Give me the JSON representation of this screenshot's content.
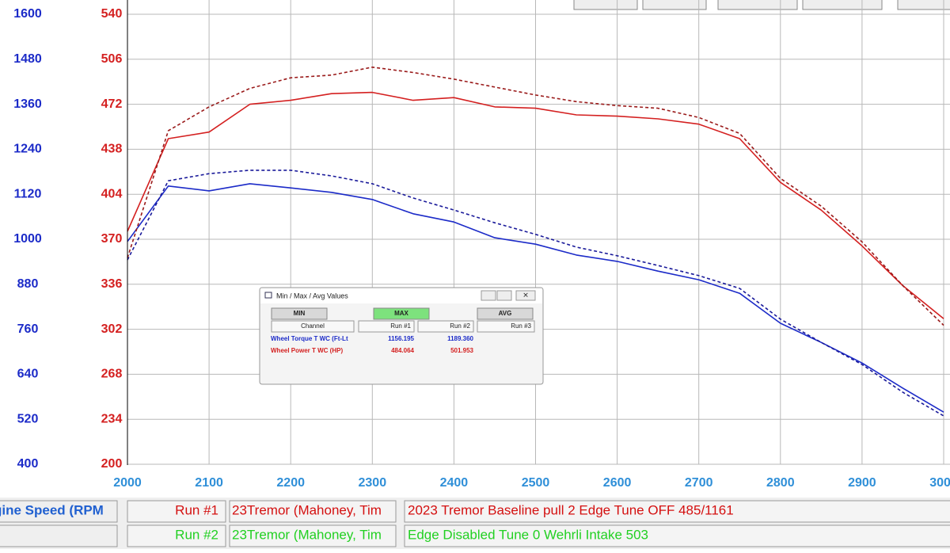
{
  "chart_data": {
    "type": "line",
    "x_label": "gine Speed (RPM",
    "x": [
      2000,
      2050,
      2100,
      2150,
      2200,
      2250,
      2300,
      2350,
      2400,
      2450,
      2500,
      2550,
      2600,
      2650,
      2700,
      2750,
      2800,
      2850,
      2900,
      2950,
      3000
    ],
    "xlim": [
      2000,
      3000
    ],
    "xticks": [
      2000,
      2100,
      2200,
      2300,
      2400,
      2500,
      2600,
      2700,
      2800,
      2900,
      3000
    ],
    "ylim": [
      400,
      1600
    ],
    "yticks": [
      400,
      520,
      640,
      760,
      880,
      1000,
      1120,
      1240,
      1360,
      1480,
      1600
    ],
    "y2lim": [
      200,
      540
    ],
    "y2ticks": [
      200,
      234,
      268,
      302,
      336,
      370,
      404,
      438,
      472,
      506,
      540
    ],
    "grid": true,
    "series": [
      {
        "color": "#1c2bc8",
        "dash": false,
        "values": [
          994,
          1142,
          1129,
          1148,
          1137,
          1125,
          1106,
          1068,
          1046,
          1004,
          987,
          958,
          941,
          915,
          892,
          856,
          776,
          725,
          670,
          603,
          539
        ]
      },
      {
        "color": "#1a1a9a",
        "dash": true,
        "values": [
          945,
          1156,
          1175,
          1184,
          1184,
          1169,
          1148,
          1110,
          1078,
          1044,
          1013,
          979,
          956,
          930,
          903,
          869,
          787,
          725,
          666,
          592,
          529
        ]
      },
      {
        "color": "#d42020",
        "dash": false,
        "axis": "y2",
        "values": [
          376,
          446,
          451,
          472,
          475,
          480,
          481,
          475,
          477,
          470,
          469,
          464,
          463,
          461,
          457,
          446,
          413,
          392,
          365,
          335,
          310
        ]
      },
      {
        "color": "#9a1a1a",
        "dash": true,
        "axis": "y2",
        "values": [
          356,
          452,
          470,
          484,
          492,
          494,
          500,
          496,
          491,
          485,
          479,
          474,
          471,
          469,
          462,
          450,
          416,
          395,
          368,
          335,
          305
        ]
      }
    ]
  },
  "dialog": {
    "title": "Min / Max / Avg Values",
    "buttons": [
      "MIN",
      "MAX",
      "AVG"
    ],
    "headers": [
      "Channel",
      "Run #1",
      "Run #2",
      "Run #3"
    ],
    "rows": [
      {
        "channel": "Wheel Torque T WC (Ft-Lt",
        "color": "#1c2bc8",
        "values": [
          "1156.195",
          "1189.360"
        ]
      },
      {
        "channel": "Wheel Power T WC (HP)",
        "color": "#d42020",
        "values": [
          "484.064",
          "501.953"
        ]
      }
    ]
  },
  "runs": [
    {
      "label": "Run #1",
      "vehicle": "23Tremor (Mahoney, Tim",
      "description": "2023 Tremor Baseline pull 2 Edge Tune OFF 485/1161",
      "color": "#d41010"
    },
    {
      "label": "Run #2",
      "vehicle": "23Tremor (Mahoney, Tim",
      "description": "Edge Disabled Tune 0 Wehrli Intake 503",
      "color": "#22d022"
    }
  ]
}
